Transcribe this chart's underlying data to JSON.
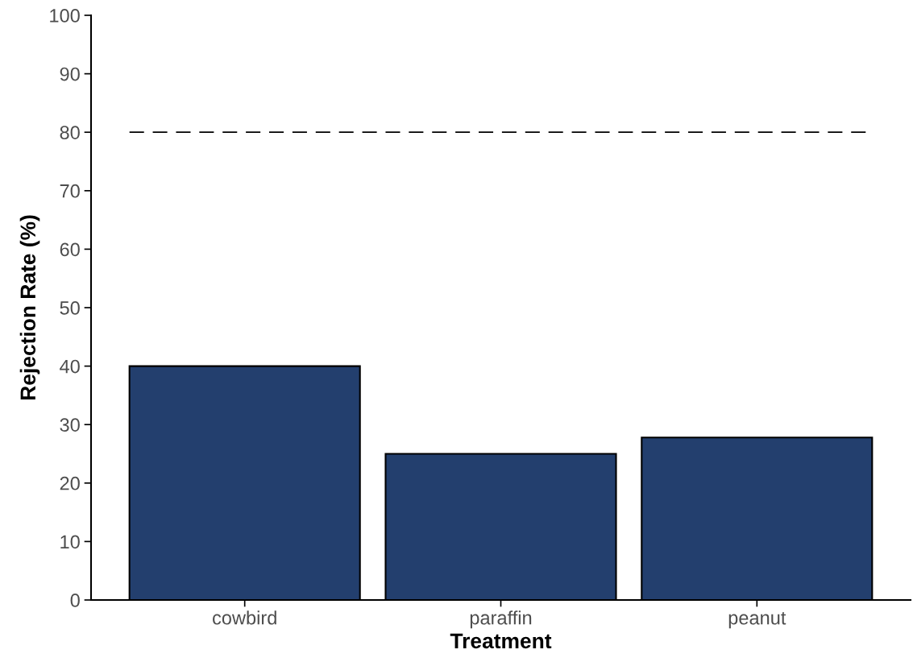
{
  "chart_data": {
    "type": "bar",
    "xlabel": "Treatment",
    "ylabel": "Rejection Rate (%)",
    "categories": [
      "cowbird",
      "paraffin",
      "peanut"
    ],
    "values": [
      40,
      25,
      27.8
    ],
    "color": "#233f6e",
    "ylim": [
      0,
      100
    ],
    "yticks": [
      0,
      10,
      20,
      30,
      40,
      50,
      60,
      70,
      80,
      90,
      100
    ],
    "ref_lines": [
      {
        "axis": "y",
        "value": 80,
        "line_style": "dashed",
        "color": "#000000"
      }
    ],
    "grid": false
  }
}
